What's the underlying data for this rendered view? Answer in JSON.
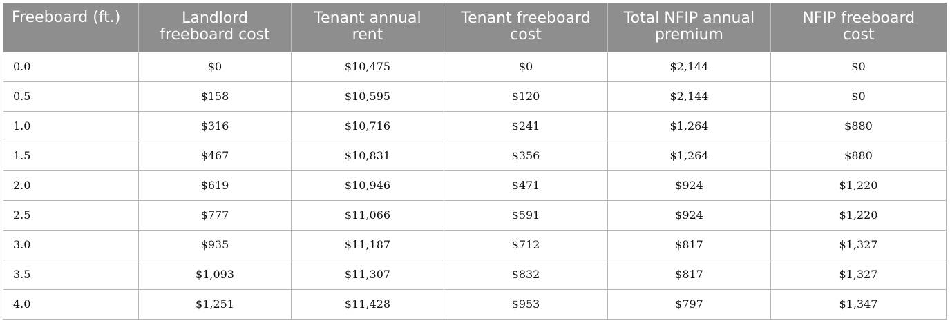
{
  "table": {
    "headers": [
      "Freeboard (ft.)",
      "Landlord\nfreeboard cost",
      "Tenant annual\nrent",
      "Tenant freeboard\ncost",
      "Total NFIP annual\npremium",
      "NFIP freeboard\ncost"
    ],
    "rows": [
      [
        "0.0",
        "$0",
        "$10,475",
        "$0",
        "$2,144",
        "$0"
      ],
      [
        "0.5",
        "$158",
        "$10,595",
        "$120",
        "$2,144",
        "$0"
      ],
      [
        "1.0",
        "$316",
        "$10,716",
        "$241",
        "$1,264",
        "$880"
      ],
      [
        "1.5",
        "$467",
        "$10,831",
        "$356",
        "$1,264",
        "$880"
      ],
      [
        "2.0",
        "$619",
        "$10,946",
        "$471",
        "$924",
        "$1,220"
      ],
      [
        "2.5",
        "$777",
        "$11,066",
        "$591",
        "$924",
        "$1,220"
      ],
      [
        "3.0",
        "$935",
        "$11,187",
        "$712",
        "$817",
        "$1,327"
      ],
      [
        "3.5",
        "$1,093",
        "$11,307",
        "$832",
        "$817",
        "$1,327"
      ],
      [
        "4.0",
        "$1,251",
        "$11,428",
        "$953",
        "$797",
        "$1,347"
      ]
    ]
  },
  "colors": {
    "header_background": "#8e8e8e",
    "header_text": "#ffffff",
    "grid_lines": "#b4b4b4"
  }
}
